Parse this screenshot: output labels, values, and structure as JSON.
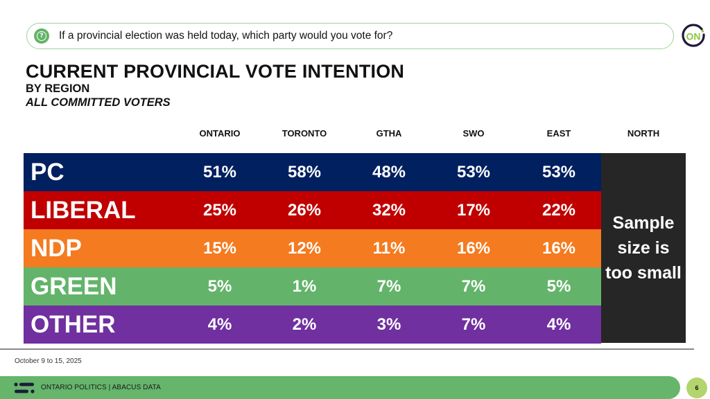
{
  "question": {
    "icon": "question-bubble-icon",
    "text": "If a provincial election was held today, which party would you vote for?"
  },
  "logo": {
    "text": "ON",
    "ring_color": "#1e1a3a",
    "text_color": "#8cc63f"
  },
  "header": {
    "title": "CURRENT PROVINCIAL VOTE INTENTION",
    "subtitle": "BY REGION",
    "subtitle2": "ALL COMMITTED VOTERS"
  },
  "chart_data": {
    "type": "table",
    "title": "CURRENT PROVINCIAL VOTE INTENTION",
    "subtitle": "BY REGION — ALL COMMITTED VOTERS",
    "columns": [
      "ONTARIO",
      "TORONTO",
      "GTHA",
      "SWO",
      "EAST",
      "NORTH"
    ],
    "rows": [
      {
        "party": "PC",
        "color": "#002060",
        "values": [
          "51%",
          "58%",
          "48%",
          "53%",
          "53%"
        ]
      },
      {
        "party": "LIBERAL",
        "color": "#c00000",
        "values": [
          "25%",
          "26%",
          "32%",
          "17%",
          "22%"
        ]
      },
      {
        "party": "NDP",
        "color": "#f47b20",
        "values": [
          "15%",
          "12%",
          "11%",
          "16%",
          "16%"
        ]
      },
      {
        "party": "GREEN",
        "color": "#63b46a",
        "values": [
          "5%",
          "1%",
          "7%",
          "7%",
          "5%"
        ]
      },
      {
        "party": "OTHER",
        "color": "#7030a0",
        "values": [
          "4%",
          "2%",
          "3%",
          "7%",
          "4%"
        ]
      }
    ],
    "north_note": "Sample size is too small",
    "north_color": "#262626"
  },
  "footer": {
    "date": "October 9 to 15, 2025",
    "label": "ONTARIO POLITICS  |  ABACUS DATA",
    "page": "6",
    "bar_color": "#65b56a",
    "page_color": "#b2d56d"
  }
}
